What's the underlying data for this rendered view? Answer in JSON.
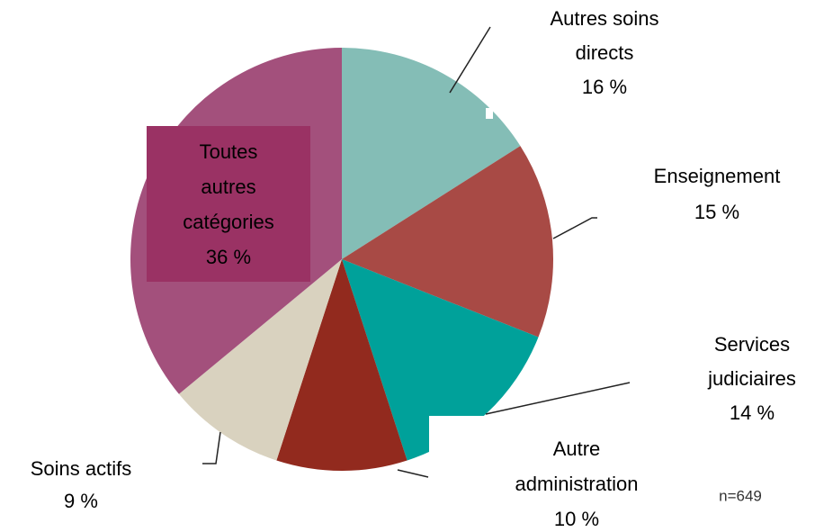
{
  "chart_data": {
    "type": "pie",
    "categories": [
      "Autres soins directs",
      "Enseignement",
      "Services judiciaires",
      "Autre administration",
      "Soins actifs",
      "Toutes autres catégories"
    ],
    "values": [
      16,
      15,
      14,
      10,
      9,
      36
    ],
    "value_labels": [
      "16 %",
      "15 %",
      "14 %",
      "10 %",
      "9 %",
      "36 %"
    ],
    "colors": [
      "#84bdb6",
      "#a84a45",
      "#00a19a",
      "#922a1e",
      "#d9d2bf",
      "#a3507c"
    ],
    "annotation": "n=649"
  }
}
